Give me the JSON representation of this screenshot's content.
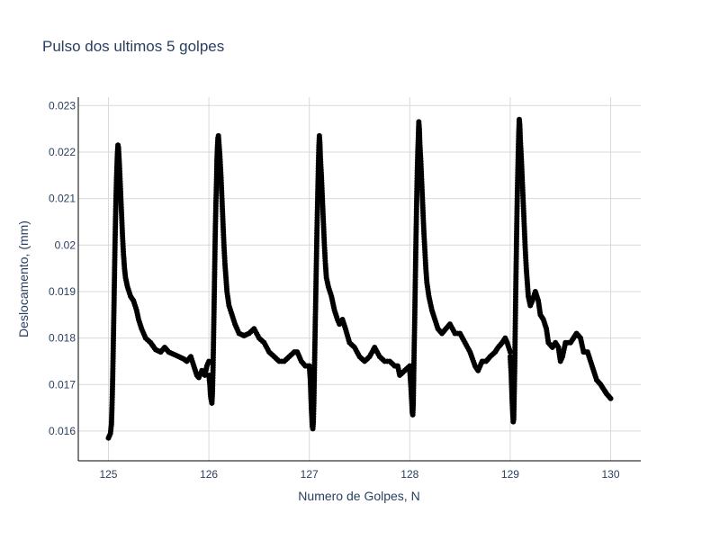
{
  "chart_data": {
    "type": "scatter",
    "title": "Pulso dos ultimos 5 golpes",
    "xlabel": "Numero de Golpes, N",
    "ylabel": "Deslocamento, (mm)",
    "xlim": [
      124.7,
      130.3
    ],
    "ylim": [
      0.01536,
      0.02318
    ],
    "xticks": [
      125,
      126,
      127,
      128,
      129,
      130
    ],
    "xtick_labels": [
      "125",
      "126",
      "127",
      "128",
      "129",
      "130"
    ],
    "yticks": [
      0.016,
      0.017,
      0.018,
      0.019,
      0.02,
      0.021,
      0.022,
      0.023
    ],
    "ytick_labels": [
      "0.016",
      "0.017",
      "0.018",
      "0.019",
      "0.02",
      "0.021",
      "0.022",
      "0.023"
    ],
    "grid": true,
    "marker_color": "#000000",
    "cycles": [
      {
        "name": "125",
        "points": [
          [
            0.0,
            0.01585
          ],
          [
            0.02,
            0.01595
          ],
          [
            0.03,
            0.01615
          ],
          [
            0.035,
            0.0165
          ],
          [
            0.04,
            0.0169
          ],
          [
            0.045,
            0.01745
          ],
          [
            0.05,
            0.01805
          ],
          [
            0.055,
            0.01865
          ],
          [
            0.06,
            0.0193
          ],
          [
            0.065,
            0.01995
          ],
          [
            0.07,
            0.0205
          ],
          [
            0.075,
            0.021
          ],
          [
            0.08,
            0.0214
          ],
          [
            0.085,
            0.0217
          ],
          [
            0.09,
            0.022
          ],
          [
            0.095,
            0.02215
          ],
          [
            0.1,
            0.0221
          ],
          [
            0.105,
            0.0219
          ],
          [
            0.11,
            0.0217
          ],
          [
            0.12,
            0.0212
          ],
          [
            0.13,
            0.0207
          ],
          [
            0.14,
            0.0202
          ],
          [
            0.15,
            0.0198
          ],
          [
            0.16,
            0.0195
          ],
          [
            0.17,
            0.0193
          ],
          [
            0.19,
            0.0191
          ],
          [
            0.22,
            0.0189
          ],
          [
            0.25,
            0.0188
          ],
          [
            0.28,
            0.0186
          ],
          [
            0.3,
            0.0184
          ],
          [
            0.33,
            0.0182
          ],
          [
            0.37,
            0.018
          ],
          [
            0.42,
            0.0179
          ],
          [
            0.47,
            0.01775
          ],
          [
            0.52,
            0.0177
          ],
          [
            0.56,
            0.0178
          ],
          [
            0.6,
            0.0177
          ],
          [
            0.65,
            0.01765
          ],
          [
            0.7,
            0.0176
          ],
          [
            0.75,
            0.01755
          ],
          [
            0.78,
            0.0175
          ],
          [
            0.82,
            0.0176
          ],
          [
            0.85,
            0.0174
          ],
          [
            0.88,
            0.0172
          ],
          [
            0.9,
            0.01715
          ],
          [
            0.93,
            0.0173
          ],
          [
            0.96,
            0.0172
          ],
          [
            0.98,
            0.0174
          ],
          [
            1.0,
            0.0175
          ]
        ]
      },
      {
        "name": "126",
        "points": [
          [
            1.0,
            0.0172
          ],
          [
            1.01,
            0.017
          ],
          [
            1.015,
            0.0168
          ],
          [
            1.02,
            0.0167
          ],
          [
            1.025,
            0.01665
          ],
          [
            1.03,
            0.0166
          ],
          [
            1.035,
            0.0168
          ],
          [
            1.04,
            0.0172
          ],
          [
            1.045,
            0.0178
          ],
          [
            1.05,
            0.01845
          ],
          [
            1.055,
            0.0191
          ],
          [
            1.06,
            0.0198
          ],
          [
            1.065,
            0.0204
          ],
          [
            1.07,
            0.0209
          ],
          [
            1.075,
            0.0213
          ],
          [
            1.08,
            0.0218
          ],
          [
            1.085,
            0.0221
          ],
          [
            1.09,
            0.0223
          ],
          [
            1.095,
            0.02235
          ],
          [
            1.1,
            0.0222
          ],
          [
            1.11,
            0.0219
          ],
          [
            1.12,
            0.0215
          ],
          [
            1.13,
            0.021
          ],
          [
            1.14,
            0.0205
          ],
          [
            1.15,
            0.02
          ],
          [
            1.16,
            0.0196
          ],
          [
            1.17,
            0.0193
          ],
          [
            1.18,
            0.019
          ],
          [
            1.2,
            0.0187
          ],
          [
            1.23,
            0.0185
          ],
          [
            1.26,
            0.0183
          ],
          [
            1.3,
            0.0181
          ],
          [
            1.35,
            0.01805
          ],
          [
            1.4,
            0.0181
          ],
          [
            1.45,
            0.0182
          ],
          [
            1.5,
            0.018
          ],
          [
            1.55,
            0.0179
          ],
          [
            1.6,
            0.0177
          ],
          [
            1.65,
            0.0176
          ],
          [
            1.7,
            0.0175
          ],
          [
            1.75,
            0.0175
          ],
          [
            1.8,
            0.0176
          ],
          [
            1.85,
            0.0177
          ],
          [
            1.88,
            0.0177
          ],
          [
            1.92,
            0.0175
          ],
          [
            1.96,
            0.0174
          ],
          [
            2.0,
            0.0174
          ]
        ]
      },
      {
        "name": "127",
        "points": [
          [
            2.0,
            0.0174
          ],
          [
            2.01,
            0.0171
          ],
          [
            2.015,
            0.0168
          ],
          [
            2.02,
            0.0165
          ],
          [
            2.025,
            0.0163
          ],
          [
            2.03,
            0.0161
          ],
          [
            2.035,
            0.01605
          ],
          [
            2.04,
            0.0162
          ],
          [
            2.045,
            0.0166
          ],
          [
            2.05,
            0.0172
          ],
          [
            2.055,
            0.0178
          ],
          [
            2.06,
            0.0184
          ],
          [
            2.065,
            0.019
          ],
          [
            2.07,
            0.0196
          ],
          [
            2.075,
            0.0202
          ],
          [
            2.08,
            0.0207
          ],
          [
            2.085,
            0.0212
          ],
          [
            2.09,
            0.0217
          ],
          [
            2.095,
            0.0221
          ],
          [
            2.1,
            0.02235
          ],
          [
            2.105,
            0.0222
          ],
          [
            2.11,
            0.0219
          ],
          [
            2.12,
            0.0215
          ],
          [
            2.13,
            0.021
          ],
          [
            2.14,
            0.0205
          ],
          [
            2.15,
            0.02
          ],
          [
            2.16,
            0.0196
          ],
          [
            2.17,
            0.0193
          ],
          [
            2.19,
            0.0191
          ],
          [
            2.22,
            0.0189
          ],
          [
            2.25,
            0.0186
          ],
          [
            2.28,
            0.0184
          ],
          [
            2.3,
            0.0183
          ],
          [
            2.33,
            0.0184
          ],
          [
            2.36,
            0.0182
          ],
          [
            2.4,
            0.0179
          ],
          [
            2.45,
            0.0178
          ],
          [
            2.5,
            0.0176
          ],
          [
            2.55,
            0.0175
          ],
          [
            2.6,
            0.0176
          ],
          [
            2.65,
            0.0178
          ],
          [
            2.7,
            0.0176
          ],
          [
            2.75,
            0.0175
          ],
          [
            2.8,
            0.0175
          ],
          [
            2.85,
            0.0174
          ],
          [
            2.88,
            0.0174
          ],
          [
            2.9,
            0.0172
          ],
          [
            2.95,
            0.0173
          ],
          [
            3.0,
            0.0174
          ]
        ]
      },
      {
        "name": "128",
        "points": [
          [
            3.0,
            0.0173
          ],
          [
            3.01,
            0.017
          ],
          [
            3.015,
            0.0168
          ],
          [
            3.02,
            0.0166
          ],
          [
            3.025,
            0.0164
          ],
          [
            3.03,
            0.01635
          ],
          [
            3.035,
            0.0166
          ],
          [
            3.04,
            0.0173
          ],
          [
            3.045,
            0.0179
          ],
          [
            3.05,
            0.0185
          ],
          [
            3.055,
            0.0192
          ],
          [
            3.06,
            0.0199
          ],
          [
            3.065,
            0.0205
          ],
          [
            3.07,
            0.0211
          ],
          [
            3.075,
            0.0216
          ],
          [
            3.08,
            0.022
          ],
          [
            3.085,
            0.0223
          ],
          [
            3.09,
            0.02265
          ],
          [
            3.095,
            0.0225
          ],
          [
            3.1,
            0.0222
          ],
          [
            3.11,
            0.0218
          ],
          [
            3.12,
            0.0213
          ],
          [
            3.13,
            0.0208
          ],
          [
            3.14,
            0.0203
          ],
          [
            3.15,
            0.0199
          ],
          [
            3.16,
            0.0195
          ],
          [
            3.17,
            0.0192
          ],
          [
            3.19,
            0.0189
          ],
          [
            3.22,
            0.0186
          ],
          [
            3.25,
            0.0184
          ],
          [
            3.28,
            0.0182
          ],
          [
            3.32,
            0.0181
          ],
          [
            3.36,
            0.0182
          ],
          [
            3.4,
            0.0183
          ],
          [
            3.45,
            0.0181
          ],
          [
            3.5,
            0.0181
          ],
          [
            3.55,
            0.0179
          ],
          [
            3.6,
            0.0177
          ],
          [
            3.65,
            0.0174
          ],
          [
            3.68,
            0.0173
          ],
          [
            3.72,
            0.0175
          ],
          [
            3.76,
            0.0175
          ],
          [
            3.8,
            0.0176
          ],
          [
            3.85,
            0.0177
          ],
          [
            3.88,
            0.0178
          ],
          [
            3.92,
            0.0179
          ],
          [
            3.95,
            0.018
          ],
          [
            3.97,
            0.0179
          ],
          [
            4.0,
            0.0177
          ]
        ]
      },
      {
        "name": "129",
        "points": [
          [
            4.0,
            0.0176
          ],
          [
            4.01,
            0.0172
          ],
          [
            4.015,
            0.0169
          ],
          [
            4.02,
            0.0166
          ],
          [
            4.025,
            0.0164
          ],
          [
            4.03,
            0.0162
          ],
          [
            4.035,
            0.01625
          ],
          [
            4.04,
            0.0168
          ],
          [
            4.045,
            0.0174
          ],
          [
            4.05,
            0.0182
          ],
          [
            4.055,
            0.019
          ],
          [
            4.06,
            0.0197
          ],
          [
            4.065,
            0.0204
          ],
          [
            4.07,
            0.021
          ],
          [
            4.075,
            0.0215
          ],
          [
            4.08,
            0.022
          ],
          [
            4.085,
            0.0224
          ],
          [
            4.09,
            0.0227
          ],
          [
            4.095,
            0.0226
          ],
          [
            4.1,
            0.0223
          ],
          [
            4.11,
            0.0219
          ],
          [
            4.12,
            0.0214
          ],
          [
            4.13,
            0.0209
          ],
          [
            4.14,
            0.0204
          ],
          [
            4.15,
            0.0199
          ],
          [
            4.16,
            0.0195
          ],
          [
            4.17,
            0.0192
          ],
          [
            4.18,
            0.0189
          ],
          [
            4.2,
            0.0187
          ],
          [
            4.22,
            0.0188
          ],
          [
            4.25,
            0.019
          ],
          [
            4.28,
            0.0188
          ],
          [
            4.3,
            0.0185
          ],
          [
            4.33,
            0.0184
          ],
          [
            4.36,
            0.0182
          ],
          [
            4.38,
            0.0179
          ],
          [
            4.42,
            0.0178
          ],
          [
            4.45,
            0.0179
          ],
          [
            4.48,
            0.0178
          ],
          [
            4.5,
            0.0175
          ],
          [
            4.52,
            0.0176
          ],
          [
            4.55,
            0.0179
          ],
          [
            4.6,
            0.0179
          ],
          [
            4.63,
            0.018
          ],
          [
            4.66,
            0.0181
          ],
          [
            4.7,
            0.018
          ],
          [
            4.73,
            0.0177
          ],
          [
            4.77,
            0.0177
          ],
          [
            4.8,
            0.0175
          ],
          [
            4.83,
            0.0173
          ],
          [
            4.86,
            0.0171
          ],
          [
            4.9,
            0.017
          ],
          [
            4.93,
            0.0169
          ],
          [
            4.96,
            0.0168
          ],
          [
            5.0,
            0.0167
          ]
        ]
      }
    ]
  }
}
